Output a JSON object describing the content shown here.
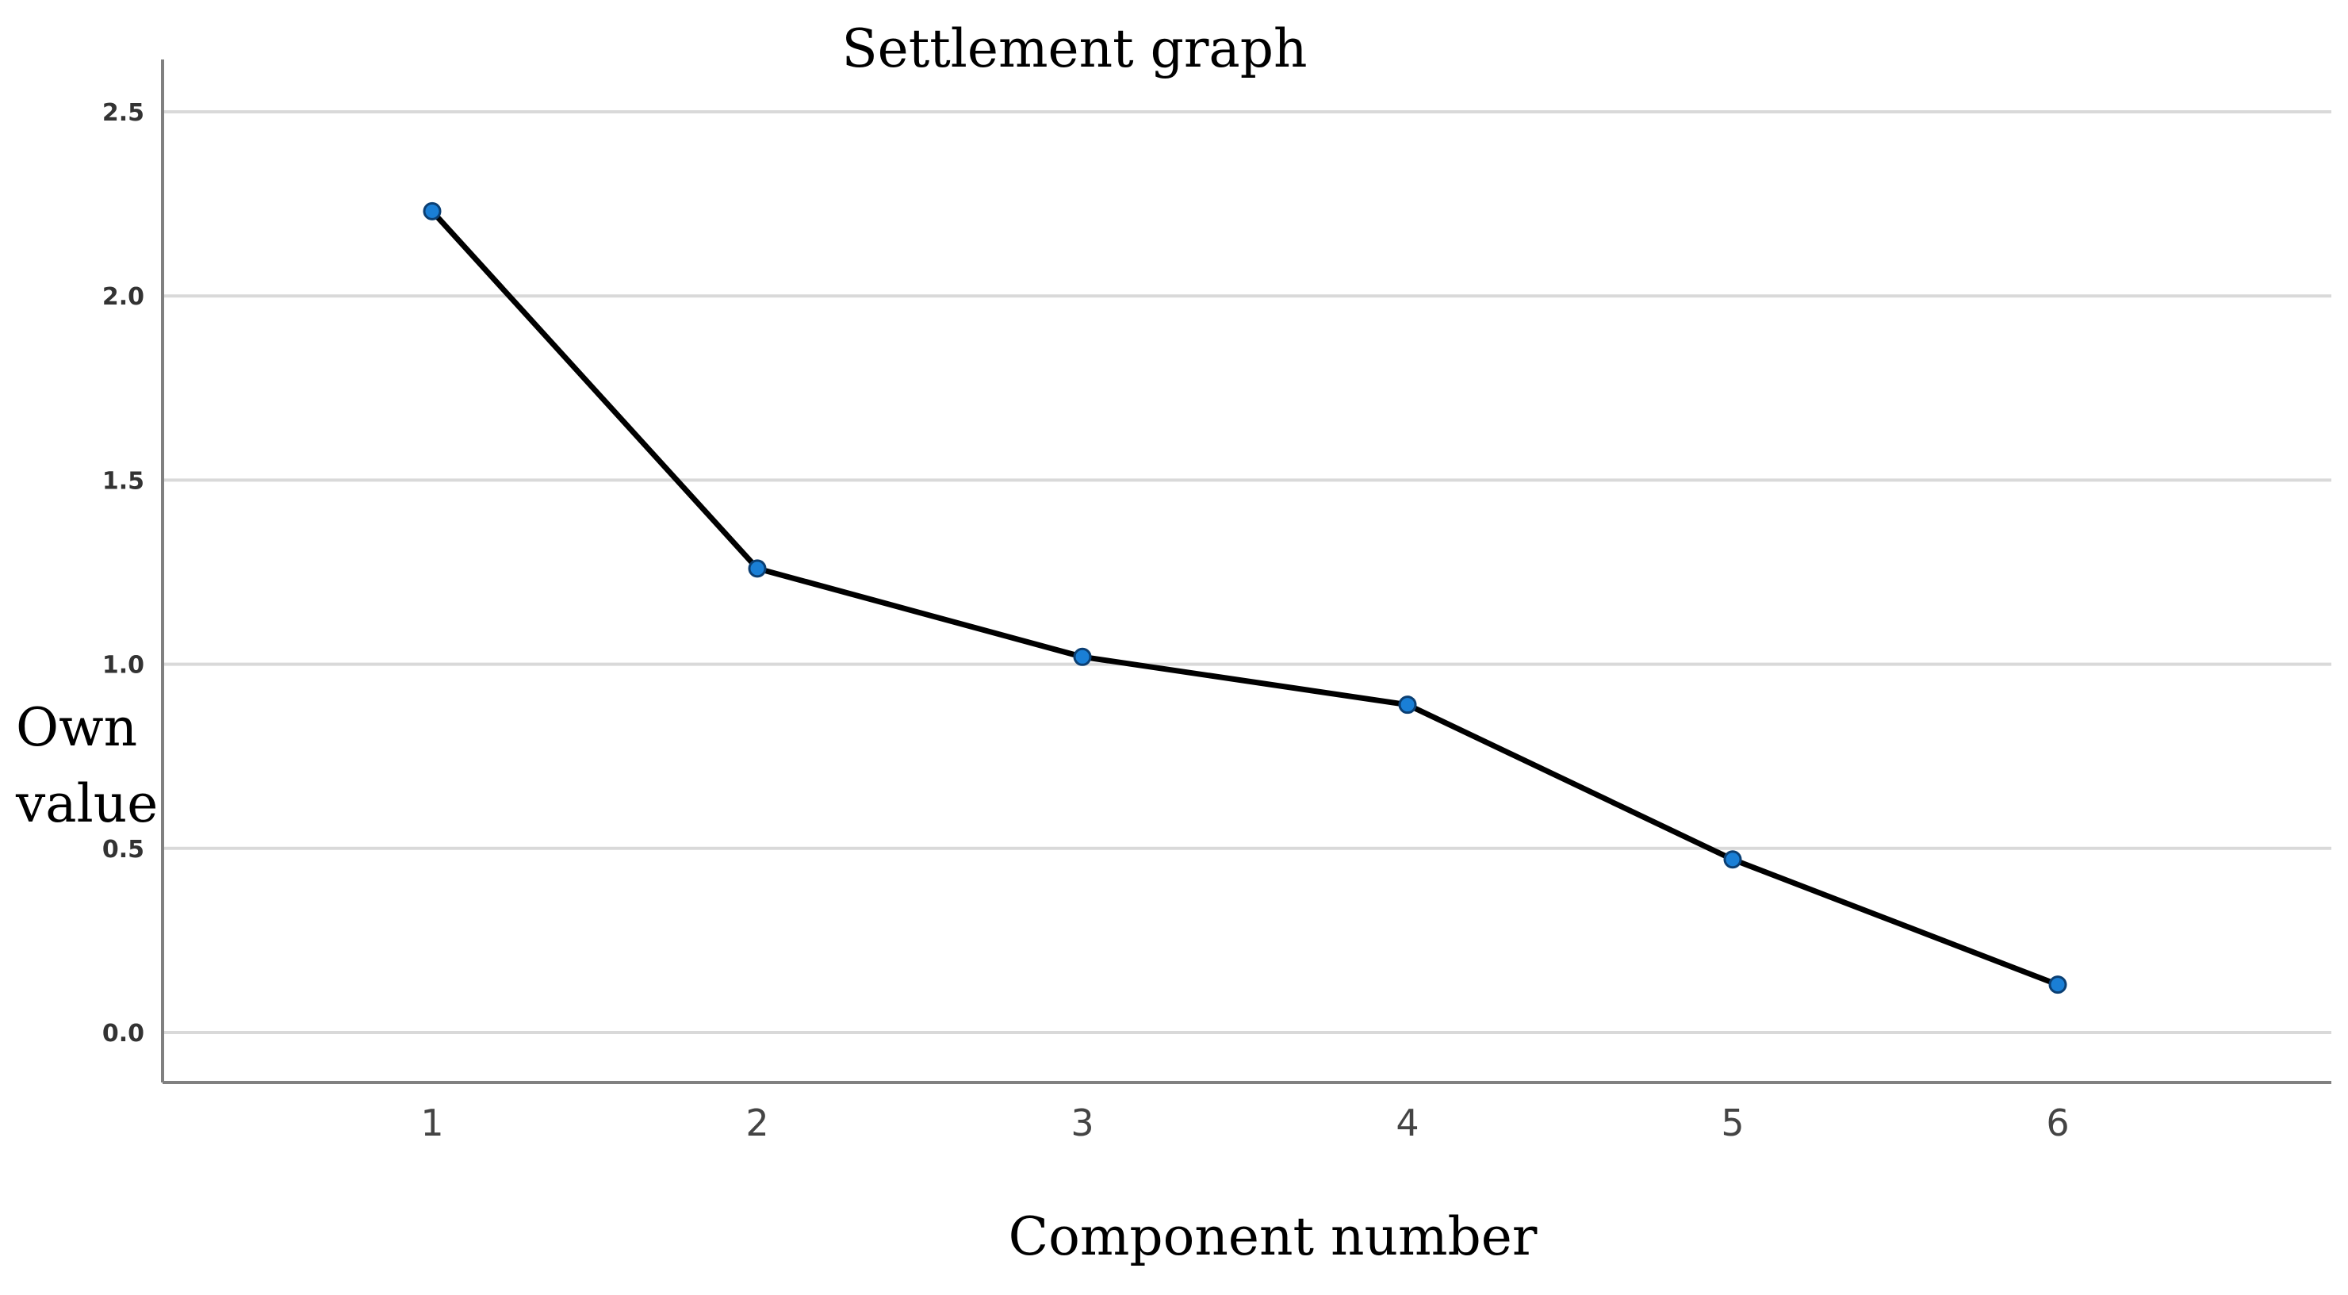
{
  "chart_data": {
    "type": "line",
    "title": "Settlement graph",
    "xlabel": "Component number",
    "ylabel_lines": [
      "Own",
      "value"
    ],
    "x": [
      "1",
      "2",
      "3",
      "4",
      "5",
      "6"
    ],
    "series": [
      {
        "values": [
          2.23,
          1.26,
          1.02,
          0.89,
          0.47,
          0.13
        ]
      }
    ],
    "yticks": [
      "0.0",
      "0.5",
      "1.0",
      "1.5",
      "2.0",
      "2.5"
    ],
    "ylim": [
      0,
      2.5
    ],
    "grid": true,
    "colors": {
      "line": "#000000",
      "marker": "#1a7fd6",
      "marker_edge": "#0b3f73",
      "grid": "#d9d9d9",
      "axis": "#808080"
    }
  }
}
